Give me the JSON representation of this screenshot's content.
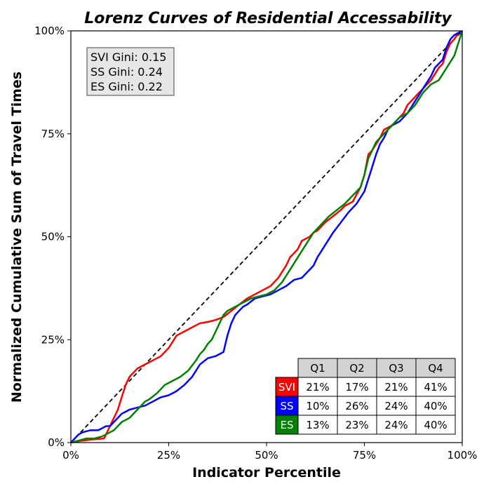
{
  "chart_data": {
    "type": "line",
    "title": "Lorenz Curves of Residential Accessability",
    "xlabel": "Indicator Percentile",
    "ylabel": "Normalized Cumulative Sum of Travel Times",
    "xlim": [
      0,
      100
    ],
    "ylim": [
      0,
      100
    ],
    "xticks": [
      "0%",
      "25%",
      "50%",
      "75%",
      "100%"
    ],
    "yticks": [
      "0%",
      "25%",
      "50%",
      "75%",
      "100%"
    ],
    "grid": false,
    "equality_line": {
      "style": "dashed",
      "color": "#000000",
      "x": [
        0,
        100
      ],
      "y": [
        0,
        100
      ]
    },
    "series": [
      {
        "name": "SVI",
        "color": "#ff0000",
        "x": [
          0,
          3,
          6,
          8.5,
          10,
          12,
          13,
          14,
          15,
          16,
          17,
          18,
          20,
          22,
          23,
          25,
          27,
          29,
          31,
          33,
          35,
          37,
          39,
          41,
          43,
          45,
          47,
          49,
          51,
          53,
          55,
          56,
          57,
          58,
          59,
          61,
          62,
          63,
          65,
          67,
          69,
          70,
          72,
          74,
          75,
          76,
          77,
          78,
          79,
          80,
          82,
          84,
          85,
          86,
          88,
          90,
          91,
          92,
          94,
          95,
          96,
          97,
          98,
          99,
          100
        ],
        "y": [
          0,
          0.5,
          0.8,
          1,
          4,
          8,
          11,
          14,
          16,
          17,
          18,
          18.5,
          19.5,
          20.5,
          21,
          23,
          26,
          27,
          28,
          29,
          29.3,
          29.8,
          30.5,
          32,
          33.5,
          35,
          36,
          37,
          38,
          40,
          43,
          45,
          46,
          47,
          49,
          50,
          51,
          51.5,
          53.5,
          55,
          56.5,
          57.5,
          58.5,
          62,
          65,
          70,
          71,
          72.5,
          74,
          76,
          77,
          79,
          80,
          82,
          84,
          86,
          87,
          88,
          91,
          92,
          95,
          97,
          98,
          99.5,
          100
        ]
      },
      {
        "name": "SS",
        "color": "#0000ff",
        "x": [
          0,
          1,
          2,
          3,
          5,
          7,
          8,
          9,
          10,
          11,
          12,
          13,
          14,
          15,
          17,
          19,
          21,
          23,
          25,
          27,
          29,
          31,
          33,
          35,
          37,
          39,
          40,
          41,
          42,
          43,
          44,
          45,
          47,
          49,
          51,
          53,
          55,
          57,
          59,
          61,
          62,
          63,
          65,
          67,
          69,
          71,
          73,
          74,
          75,
          76,
          77,
          78,
          79,
          80,
          81,
          82,
          84,
          86,
          88,
          90,
          92,
          93,
          95,
          96,
          97,
          98,
          99,
          100
        ],
        "y": [
          0,
          1,
          2,
          2.5,
          3,
          3,
          3.5,
          4,
          4,
          5,
          6,
          7,
          7.5,
          8,
          8.5,
          9,
          10,
          11,
          11.5,
          12.5,
          14,
          16,
          19,
          20.5,
          21,
          22,
          26,
          29,
          31,
          32,
          33,
          33.5,
          35,
          35.5,
          36,
          37,
          38,
          39.5,
          40,
          42,
          43,
          45,
          48,
          51,
          53.5,
          56,
          58,
          59.5,
          61,
          64,
          67,
          70,
          72.5,
          74,
          76,
          77,
          78,
          80,
          83,
          86,
          89,
          91,
          93,
          96,
          98,
          99,
          99.5,
          100
        ]
      },
      {
        "name": "ES",
        "color": "#008000",
        "x": [
          0,
          2,
          4,
          6,
          8,
          9,
          10,
          11,
          12,
          13,
          14,
          15,
          16,
          17,
          18,
          19,
          20,
          22,
          24,
          26,
          28,
          30,
          32,
          33,
          34,
          35,
          36,
          37,
          38,
          39,
          40,
          42,
          44,
          46,
          48,
          50,
          52,
          54,
          56,
          58,
          60,
          62,
          64,
          66,
          68,
          70,
          72,
          74,
          75,
          76,
          77,
          78,
          80,
          82,
          84,
          86,
          88,
          90,
          92,
          94,
          96,
          98,
          100
        ],
        "y": [
          0,
          0.5,
          1,
          1,
          1.5,
          2,
          2.5,
          3,
          4,
          5,
          5.5,
          6,
          7,
          8,
          9,
          10,
          10.5,
          12,
          14,
          15,
          16,
          17.5,
          20,
          21.5,
          22.5,
          24,
          25,
          27,
          29,
          31,
          32,
          33,
          34,
          35,
          35.5,
          36,
          37,
          39,
          42,
          45,
          48,
          51,
          53,
          55,
          56.5,
          58,
          60,
          62,
          65,
          69,
          71,
          73,
          75,
          77,
          79,
          80,
          82,
          85,
          87,
          88,
          91,
          94,
          100
        ]
      }
    ],
    "stats_box": {
      "lines": [
        "SVI Gini: 0.15",
        "SS Gini: 0.24",
        "ES Gini: 0.22"
      ],
      "position": "top-left"
    },
    "quartile_table": {
      "position": "bottom-right",
      "columns": [
        "Q1",
        "Q2",
        "Q3",
        "Q4"
      ],
      "rows": [
        {
          "label": "SVI",
          "color": "#ff0000",
          "values": [
            "21%",
            "17%",
            "21%",
            "41%"
          ]
        },
        {
          "label": "SS",
          "color": "#0000ff",
          "values": [
            "10%",
            "26%",
            "24%",
            "40%"
          ]
        },
        {
          "label": "ES",
          "color": "#008000",
          "values": [
            "13%",
            "23%",
            "24%",
            "40%"
          ]
        }
      ]
    }
  }
}
